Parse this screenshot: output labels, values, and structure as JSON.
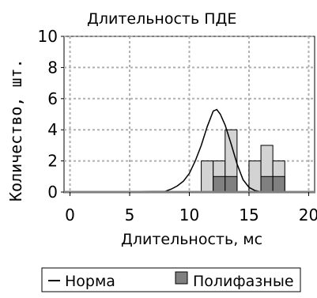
{
  "chart_data": {
    "type": "bar",
    "title": "Длительность ПДЕ",
    "xlabel": "Длительность, мс",
    "ylabel": "Количество, шт.",
    "xlim": [
      -0.5,
      20.5
    ],
    "ylim": [
      0,
      10
    ],
    "x_ticks": [
      0,
      5,
      10,
      15,
      20
    ],
    "y_ticks": [
      0,
      2,
      4,
      6,
      8,
      10
    ],
    "grid": true,
    "bin_width": 1,
    "series": [
      {
        "name": "",
        "kind": "histogram",
        "color": "#d3d3d3",
        "bins": [
          {
            "start": 11,
            "value": 2
          },
          {
            "start": 12,
            "value": 2
          },
          {
            "start": 13,
            "value": 4
          },
          {
            "start": 15,
            "value": 2
          },
          {
            "start": 16,
            "value": 3
          },
          {
            "start": 17,
            "value": 2
          }
        ]
      },
      {
        "name": "Полифазные",
        "kind": "histogram",
        "color": "#808080",
        "bins": [
          {
            "start": 12,
            "value": 1
          },
          {
            "start": 13,
            "value": 1
          },
          {
            "start": 16,
            "value": 1
          },
          {
            "start": 17,
            "value": 1
          }
        ]
      },
      {
        "name": "Норма",
        "kind": "line",
        "color": "#000000",
        "points": [
          [
            -0.5,
            0
          ],
          [
            8.0,
            0.05
          ],
          [
            8.5,
            0.2
          ],
          [
            9.0,
            0.4
          ],
          [
            9.5,
            0.7
          ],
          [
            10.0,
            1.2
          ],
          [
            10.5,
            2.0
          ],
          [
            11.0,
            3.0
          ],
          [
            11.5,
            4.2
          ],
          [
            12.0,
            5.2
          ],
          [
            12.3,
            5.3
          ],
          [
            12.6,
            5.0
          ],
          [
            13.0,
            4.3
          ],
          [
            13.5,
            3.1
          ],
          [
            14.0,
            1.8
          ],
          [
            14.5,
            0.8
          ],
          [
            15.0,
            0.3
          ],
          [
            15.5,
            0.1
          ],
          [
            16.0,
            0.02
          ],
          [
            20.5,
            0
          ]
        ]
      }
    ],
    "legend": {
      "position": "bottom",
      "entries": [
        {
          "label": "Норма",
          "marker": "line"
        },
        {
          "label": "Полифазные",
          "marker": "box",
          "color": "#808080"
        }
      ]
    }
  }
}
